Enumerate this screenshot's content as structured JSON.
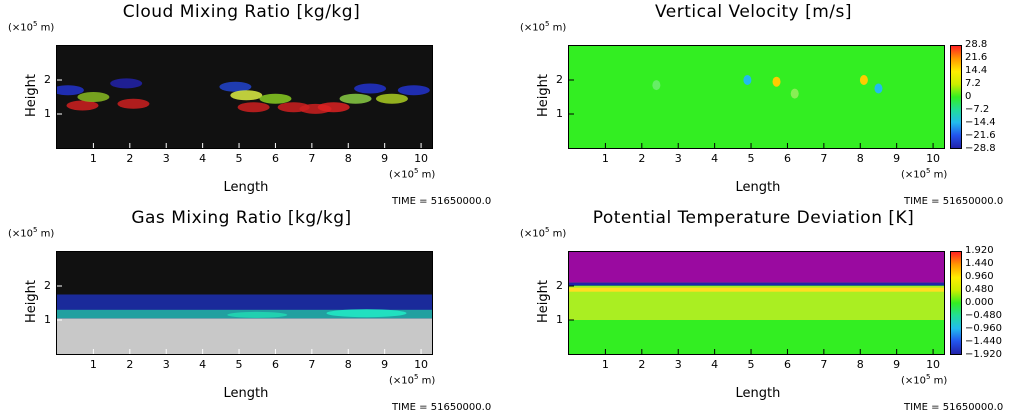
{
  "x_unit_html": "(×10<sup>5</sup> m)",
  "y_unit_html": "(×10<sup>5</sup> m)",
  "chart_data": [
    {
      "type": "heatmap",
      "title": "Cloud Mixing Ratio [kg/kg]",
      "xlabel": "Length",
      "ylabel": "Height",
      "x_unit": "(×10^5 m)",
      "y_unit": "(×10^5 m)",
      "xlim": [
        0,
        10.3
      ],
      "ylim": [
        0,
        3.0
      ],
      "xticks": [
        1,
        2,
        3,
        4,
        5,
        6,
        7,
        8,
        9,
        10
      ],
      "yticks": [
        1,
        2
      ],
      "time": "TIME = 51650000.0",
      "background": "#111111",
      "colorbar": null
    },
    {
      "type": "heatmap",
      "title": "Vertical Velocity [m/s]",
      "xlabel": "Length",
      "ylabel": "Height",
      "x_unit": "(×10^5 m)",
      "y_unit": "(×10^5 m)",
      "xlim": [
        0,
        10.3
      ],
      "ylim": [
        0,
        3.0
      ],
      "xticks": [
        1,
        2,
        3,
        4,
        5,
        6,
        7,
        8,
        9,
        10
      ],
      "yticks": [
        1,
        2
      ],
      "time": "TIME = 51650000.0",
      "background": "#33ee22",
      "colorbar": [
        "28.8",
        "21.6",
        "14.4",
        "7.2",
        "0",
        "−7.2",
        "−14.4",
        "−21.6",
        "−28.8"
      ]
    },
    {
      "type": "heatmap",
      "title": "Gas Mixing Ratio [kg/kg]",
      "xlabel": "Length",
      "ylabel": "Height",
      "x_unit": "(×10^5 m)",
      "y_unit": "(×10^5 m)",
      "xlim": [
        0,
        10.3
      ],
      "ylim": [
        0,
        3.0
      ],
      "xticks": [
        1,
        2,
        3,
        4,
        5,
        6,
        7,
        8,
        9,
        10
      ],
      "yticks": [
        1,
        2
      ],
      "time": "TIME = 51650000.0",
      "background": "#111111",
      "colorbar": null
    },
    {
      "type": "heatmap",
      "title": "Potential Temperature Deviation [K]",
      "xlabel": "Length",
      "ylabel": "Height",
      "x_unit": "(×10^5 m)",
      "y_unit": "(×10^5 m)",
      "xlim": [
        0,
        10.3
      ],
      "ylim": [
        0,
        3.0
      ],
      "xticks": [
        1,
        2,
        3,
        4,
        5,
        6,
        7,
        8,
        9,
        10
      ],
      "yticks": [
        1,
        2
      ],
      "time": "TIME = 51650000.0",
      "background": "#33ee22",
      "colorbar": [
        "1.920",
        "1.440",
        "0.960",
        "0.480",
        "0.000",
        "−0.480",
        "−0.960",
        "−1.440",
        "−1.920"
      ]
    }
  ],
  "colormap": [
    "#ff2222",
    "#ff9900",
    "#ffee00",
    "#ccee00",
    "#33ee22",
    "#22dd99",
    "#22bbee",
    "#2255ee",
    "#2222aa"
  ]
}
